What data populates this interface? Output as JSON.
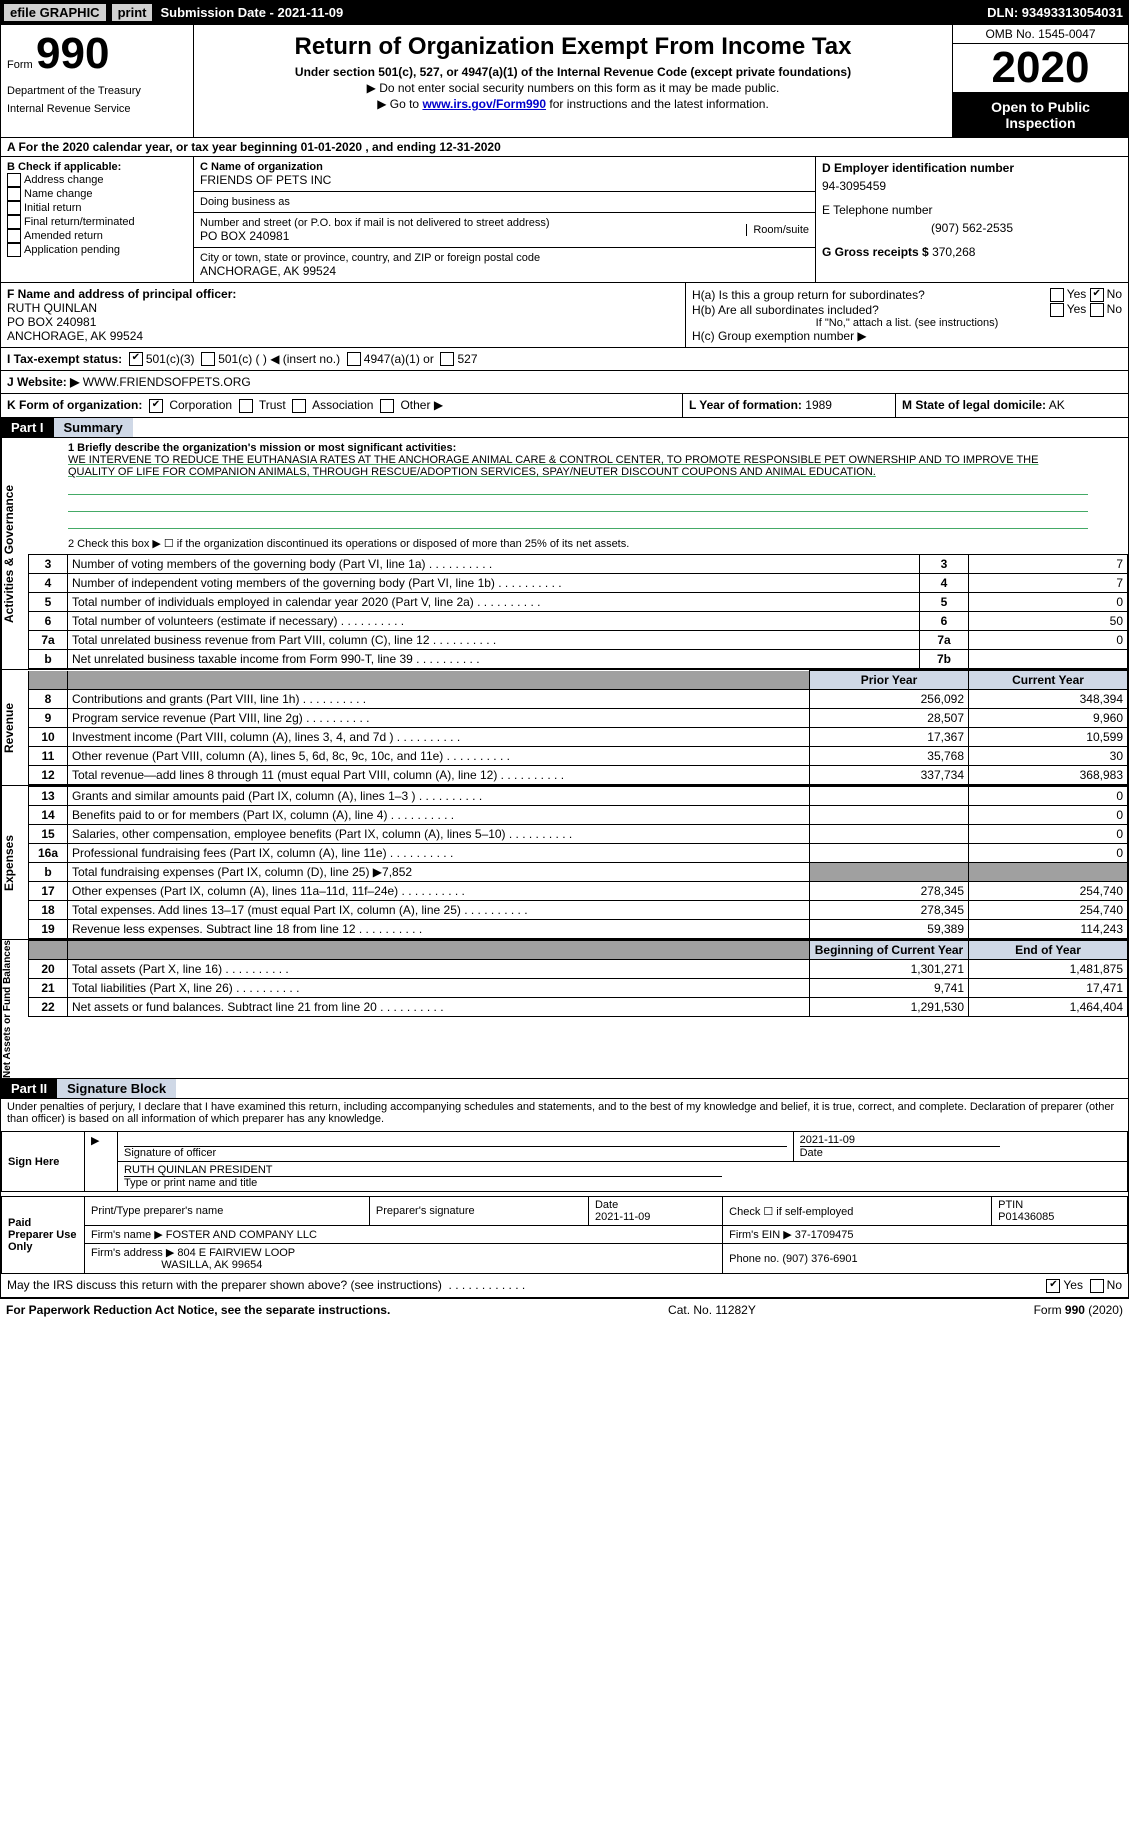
{
  "topbar": {
    "efile": "efile GRAPHIC",
    "print": "print",
    "submission": "Submission Date - 2021-11-09",
    "dln": "DLN: 93493313054031"
  },
  "header": {
    "form_prefix": "Form",
    "form_number": "990",
    "dept1": "Department of the Treasury",
    "dept2": "Internal Revenue Service",
    "title": "Return of Organization Exempt From Income Tax",
    "subtitle": "Under section 501(c), 527, or 4947(a)(1) of the Internal Revenue Code (except private foundations)",
    "note1": "▶ Do not enter social security numbers on this form as it may be made public.",
    "note2_pre": "▶ Go to ",
    "note2_link": "www.irs.gov/Form990",
    "note2_post": " for instructions and the latest information.",
    "omb": "OMB No. 1545-0047",
    "year": "2020",
    "open_public": "Open to Public Inspection"
  },
  "taxyear": "A For the 2020 calendar year, or tax year beginning 01-01-2020    , and ending 12-31-2020",
  "box_b": {
    "title": "B Check if applicable:",
    "items": [
      "Address change",
      "Name change",
      "Initial return",
      "Final return/terminated",
      "Amended return",
      "Application pending"
    ]
  },
  "box_c": {
    "label": "C Name of organization",
    "name": "FRIENDS OF PETS INC",
    "dba_label": "Doing business as",
    "street_label": "Number and street (or P.O. box if mail is not delivered to street address)",
    "room_label": "Room/suite",
    "street": "PO BOX 240981",
    "city_label": "City or town, state or province, country, and ZIP or foreign postal code",
    "city": "ANCHORAGE, AK  99524"
  },
  "box_d": {
    "label": "D Employer identification number",
    "value": "94-3095459",
    "phone_label": "E Telephone number",
    "phone": "(907) 562-2535",
    "gross_label": "G Gross receipts $",
    "gross": "370,268"
  },
  "box_f": {
    "label": "F  Name and address of principal officer:",
    "name": "RUTH QUINLAN",
    "addr1": "PO BOX 240981",
    "addr2": "ANCHORAGE, AK  99524"
  },
  "box_h": {
    "ha_label": "H(a)  Is this a group return for subordinates?",
    "hb_label": "H(b)  Are all subordinates included?",
    "hb_note": "If \"No,\" attach a list. (see instructions)",
    "hc_label": "H(c)  Group exemption number ▶",
    "yes": "Yes",
    "no": "No"
  },
  "tax_status": {
    "label": "I  Tax-exempt status:",
    "o1": "501(c)(3)",
    "o2": "501(c) (  ) ◀ (insert no.)",
    "o3": "4947(a)(1) or",
    "o4": "527"
  },
  "website": {
    "label": "J  Website: ▶",
    "value": "WWW.FRIENDSOFPETS.ORG"
  },
  "row_k": {
    "label": "K Form of organization:",
    "o1": "Corporation",
    "o2": "Trust",
    "o3": "Association",
    "o4": "Other ▶",
    "l_label": "L Year of formation:",
    "l_val": "1989",
    "m_label": "M State of legal domicile:",
    "m_val": "AK"
  },
  "part1": {
    "tab": "Part I",
    "title": "Summary",
    "q1_label": "1  Briefly describe the organization's mission or most significant activities:",
    "q1_text": "WE INTERVENE TO REDUCE THE EUTHANASIA RATES AT THE ANCHORAGE ANIMAL CARE & CONTROL CENTER, TO PROMOTE RESPONSIBLE PET OWNERSHIP AND TO IMPROVE THE QUALITY OF LIFE FOR COMPANION ANIMALS, THROUGH RESCUE/ADOPTION SERVICES, SPAY/NEUTER DISCOUNT COUPONS AND ANIMAL EDUCATION.",
    "q2": "2  Check this box ▶ ☐  if the organization discontinued its operations or disposed of more than 25% of its net assets.",
    "side_ag": "Activities & Governance",
    "side_rev": "Revenue",
    "side_exp": "Expenses",
    "side_net": "Net Assets or Fund Balances",
    "lines_top": [
      {
        "n": "3",
        "d": "Number of voting members of the governing body (Part VI, line 1a)",
        "v": "7"
      },
      {
        "n": "4",
        "d": "Number of independent voting members of the governing body (Part VI, line 1b)",
        "v": "7"
      },
      {
        "n": "5",
        "d": "Total number of individuals employed in calendar year 2020 (Part V, line 2a)",
        "v": "0"
      },
      {
        "n": "6",
        "d": "Total number of volunteers (estimate if necessary)",
        "v": "50"
      },
      {
        "n": "7a",
        "d": "Total unrelated business revenue from Part VIII, column (C), line 12",
        "v": "0"
      },
      {
        "n": "b",
        "d": "Net unrelated business taxable income from Form 990-T, line 39",
        "hide_n": true,
        "v": ""
      }
    ],
    "col_prior": "Prior Year",
    "col_current": "Current Year",
    "col_boc": "Beginning of Current Year",
    "col_eoy": "End of Year",
    "revenue": [
      {
        "n": "8",
        "d": "Contributions and grants (Part VIII, line 1h)",
        "p": "256,092",
        "c": "348,394"
      },
      {
        "n": "9",
        "d": "Program service revenue (Part VIII, line 2g)",
        "p": "28,507",
        "c": "9,960"
      },
      {
        "n": "10",
        "d": "Investment income (Part VIII, column (A), lines 3, 4, and 7d )",
        "p": "17,367",
        "c": "10,599"
      },
      {
        "n": "11",
        "d": "Other revenue (Part VIII, column (A), lines 5, 6d, 8c, 9c, 10c, and 11e)",
        "p": "35,768",
        "c": "30"
      },
      {
        "n": "12",
        "d": "Total revenue—add lines 8 through 11 (must equal Part VIII, column (A), line 12)",
        "p": "337,734",
        "c": "368,983"
      }
    ],
    "expenses": [
      {
        "n": "13",
        "d": "Grants and similar amounts paid (Part IX, column (A), lines 1–3 )",
        "p": "",
        "c": "0"
      },
      {
        "n": "14",
        "d": "Benefits paid to or for members (Part IX, column (A), line 4)",
        "p": "",
        "c": "0"
      },
      {
        "n": "15",
        "d": "Salaries, other compensation, employee benefits (Part IX, column (A), lines 5–10)",
        "p": "",
        "c": "0"
      },
      {
        "n": "16a",
        "d": "Professional fundraising fees (Part IX, column (A), line 11e)",
        "p": "",
        "c": "0"
      },
      {
        "n": "b",
        "d": "Total fundraising expenses (Part IX, column (D), line 25) ▶7,852",
        "grey": true
      },
      {
        "n": "17",
        "d": "Other expenses (Part IX, column (A), lines 11a–11d, 11f–24e)",
        "p": "278,345",
        "c": "254,740"
      },
      {
        "n": "18",
        "d": "Total expenses. Add lines 13–17 (must equal Part IX, column (A), line 25)",
        "p": "278,345",
        "c": "254,740"
      },
      {
        "n": "19",
        "d": "Revenue less expenses. Subtract line 18 from line 12",
        "p": "59,389",
        "c": "114,243"
      }
    ],
    "netassets": [
      {
        "n": "20",
        "d": "Total assets (Part X, line 16)",
        "p": "1,301,271",
        "c": "1,481,875"
      },
      {
        "n": "21",
        "d": "Total liabilities (Part X, line 26)",
        "p": "9,741",
        "c": "17,471"
      },
      {
        "n": "22",
        "d": "Net assets or fund balances. Subtract line 21 from line 20",
        "p": "1,291,530",
        "c": "1,464,404"
      }
    ]
  },
  "part2": {
    "tab": "Part II",
    "title": "Signature Block",
    "decl": "Under penalties of perjury, I declare that I have examined this return, including accompanying schedules and statements, and to the best of my knowledge and belief, it is true, correct, and complete. Declaration of preparer (other than officer) is based on all information of which preparer has any knowledge.",
    "sign_here": "Sign Here",
    "sig_of_officer": "Signature of officer",
    "date_label": "Date",
    "date": "2021-11-09",
    "name_title": "RUTH QUINLAN  PRESIDENT",
    "name_title_label": "Type or print name and title",
    "paid_label": "Paid Preparer Use Only",
    "pp_name_label": "Print/Type preparer's name",
    "pp_sig_label": "Preparer's signature",
    "pp_date": "2021-11-09",
    "pp_check_label": "Check ☐ if self-employed",
    "ptin_label": "PTIN",
    "ptin": "P01436085",
    "firm_name_label": "Firm's name    ▶",
    "firm_name": "FOSTER AND COMPANY LLC",
    "firm_ein_label": "Firm's EIN ▶",
    "firm_ein": "37-1709475",
    "firm_addr_label": "Firm's address ▶",
    "firm_addr1": "804 E FAIRVIEW LOOP",
    "firm_addr2": "WASILLA, AK  99654",
    "firm_phone_label": "Phone no.",
    "firm_phone": "(907) 376-6901",
    "discuss": "May the IRS discuss this return with the preparer shown above? (see instructions)",
    "yes": "Yes",
    "no": "No"
  },
  "footer": {
    "left": "For Paperwork Reduction Act Notice, see the separate instructions.",
    "mid": "Cat. No. 11282Y",
    "right_pre": "Form ",
    "right_bold": "990",
    "right_post": " (2020)"
  }
}
